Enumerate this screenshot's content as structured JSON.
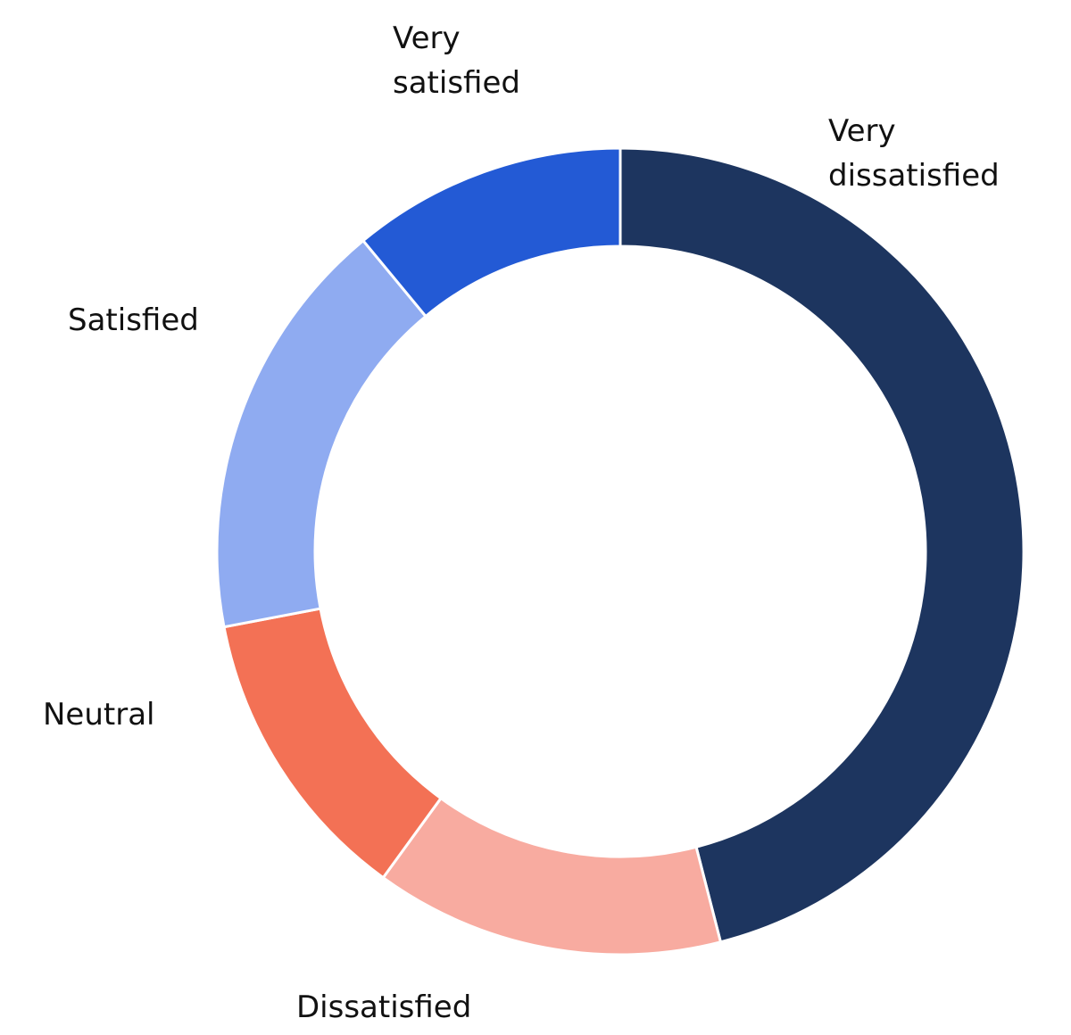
{
  "chart_data": {
    "type": "pie",
    "variant": "donut",
    "start": "top",
    "direction": "clockwise",
    "legend": "none",
    "slices": [
      {
        "label": "Very dissatisfied",
        "value": 46,
        "color": "#1d355f"
      },
      {
        "label": "Dissatisfied",
        "value": 14,
        "color": "#f8aba0"
      },
      {
        "label": "Neutral",
        "value": 12,
        "color": "#f37155"
      },
      {
        "label": "Satisfied",
        "value": 17,
        "color": "#8fabf1"
      },
      {
        "label": "Very satisfied",
        "value": 11,
        "color": "#235ad5"
      }
    ]
  }
}
